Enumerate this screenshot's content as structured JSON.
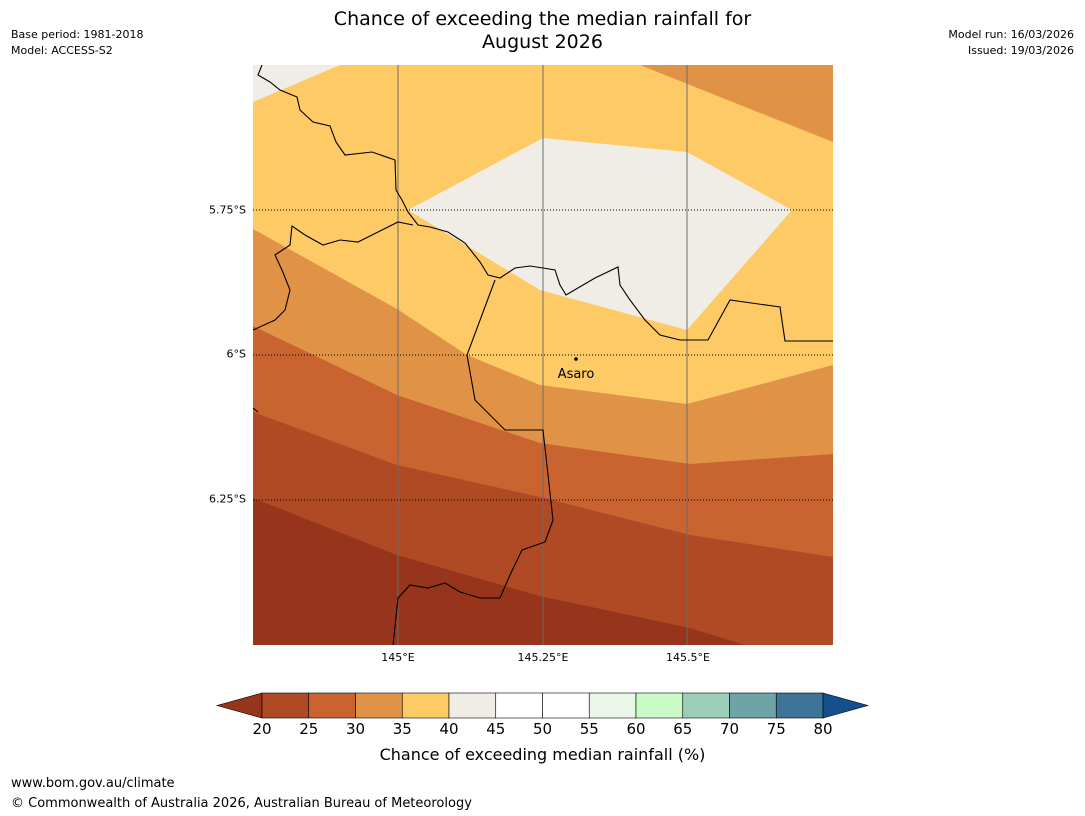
{
  "header": {
    "title_line1": "Chance of exceeding the median rainfall for",
    "title_line2": "August 2026",
    "base_period": "Base period: 1981-2018",
    "model": "Model: ACCESS-S2",
    "model_run": "Model run: 16/03/2026",
    "issued": "Issued: 19/03/2026"
  },
  "map": {
    "latitude_labels": [
      "5.75°S",
      "6°S",
      "6.25°S"
    ],
    "longitude_labels": [
      "145°E",
      "145.25°E",
      "145.5°E"
    ],
    "place": {
      "name": "Asaro"
    }
  },
  "colorbar": {
    "label": "Chance of exceeding median rainfall (%)",
    "ticks": [
      "20",
      "25",
      "30",
      "35",
      "40",
      "45",
      "50",
      "55",
      "60",
      "65",
      "70",
      "75",
      "80"
    ],
    "under_color": "#97351c",
    "over_color": "#134f8c",
    "colors": [
      "#b04a24",
      "#c96430",
      "#e09347",
      "#fdca66",
      "#f0ece6",
      "#ffffff",
      "#ffffff",
      "#eaf6e8",
      "#c8fbc6",
      "#9ccfb9",
      "#6ea4a6",
      "#3d7497"
    ]
  },
  "footer": {
    "url": "www.bom.gov.au/climate",
    "copyright": "© Commonwealth of Australia 2026, Australian Bureau of Meteorology"
  }
}
